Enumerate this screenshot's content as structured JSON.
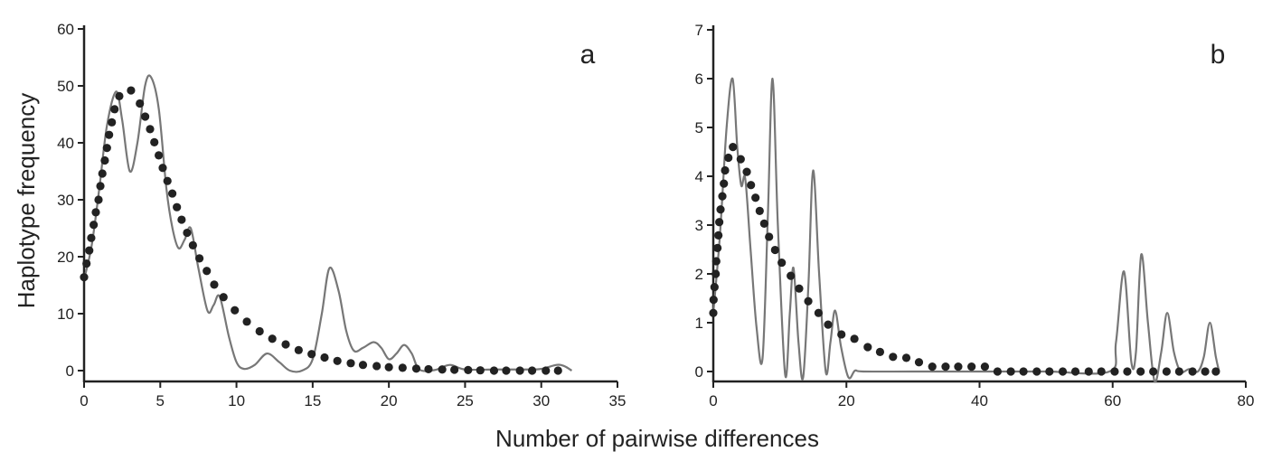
{
  "figure": {
    "xlabel": "Number of pairwise differences",
    "ylabel": "Haplotype frequency",
    "colors": {
      "observed_line": "#777777",
      "expected_dots": "#222222",
      "axis": "#222222"
    }
  },
  "chart_data": [
    {
      "type": "line",
      "panel_label": "a",
      "xlim": [
        0,
        35
      ],
      "ylim": [
        0,
        60
      ],
      "xticks": [
        "0",
        "5",
        "10",
        "15",
        "20",
        "25",
        "30",
        "35"
      ],
      "yticks": [
        "0",
        "10",
        "20",
        "30",
        "40",
        "50",
        "60"
      ],
      "grid": false,
      "series": [
        {
          "style": "solid-line",
          "x": [
            0,
            0.5,
            1,
            1.5,
            2.1,
            2.5,
            3.0,
            3.5,
            4.0,
            4.4,
            4.9,
            5.4,
            5.8,
            6.2,
            6.6,
            7.0,
            7.5,
            8.1,
            8.5,
            8.9,
            9.5,
            10.0,
            10.5,
            11.2,
            12.0,
            12.8,
            13.5,
            14.3,
            15.0,
            15.6,
            16.1,
            16.7,
            17.2,
            17.7,
            18.3,
            19.0,
            19.5,
            20.0,
            20.5,
            21.0,
            21.5,
            22.0,
            23.0,
            24.0,
            25.0,
            27.0,
            29.0,
            30.0,
            31.0,
            31.5,
            32.0
          ],
          "y": [
            16,
            22,
            32,
            43,
            49,
            44,
            35,
            40,
            50,
            51.5,
            46,
            32,
            25,
            21.5,
            23,
            25,
            18,
            10.5,
            11.5,
            13,
            6,
            1.5,
            0.3,
            1,
            3,
            1.5,
            0,
            0,
            2,
            10,
            18,
            14,
            7,
            3.5,
            4,
            5,
            4,
            2,
            3,
            4.5,
            3,
            0.2,
            0.1,
            1,
            0.2,
            0.2,
            0.2,
            0.3,
            1,
            0.8,
            0
          ]
        },
        {
          "style": "dots",
          "x": [
            0,
            0.16,
            0.34,
            0.47,
            0.63,
            0.77,
            0.95,
            1.07,
            1.2,
            1.36,
            1.5,
            1.64,
            1.82,
            2.0,
            2.31,
            3.08,
            3.66,
            4.01,
            4.33,
            4.61,
            4.9,
            5.16,
            5.47,
            5.79,
            6.09,
            6.4,
            6.76,
            7.14,
            7.57,
            8.05,
            8.54,
            9.15,
            9.89,
            10.68,
            11.52,
            12.35,
            13.23,
            14.08,
            14.93,
            15.78,
            16.62,
            17.5,
            18.3,
            19.2,
            20.0,
            20.9,
            21.8,
            22.6,
            23.5,
            24.3,
            25.2,
            26.0,
            26.9,
            27.7,
            28.6,
            29.4,
            30.3,
            31.1
          ],
          "y": [
            16.4,
            18.8,
            21.1,
            23.3,
            25.6,
            27.8,
            30.0,
            32.4,
            34.6,
            36.9,
            39.1,
            41.4,
            43.6,
            45.9,
            48.2,
            49.2,
            46.9,
            44.6,
            42.4,
            40.1,
            37.8,
            35.6,
            33.3,
            31.1,
            28.7,
            26.5,
            24.2,
            22.0,
            19.7,
            17.5,
            15.1,
            12.9,
            10.6,
            8.6,
            6.9,
            5.6,
            4.6,
            3.6,
            2.9,
            2.3,
            1.7,
            1.3,
            1.0,
            0.8,
            0.6,
            0.5,
            0.35,
            0.25,
            0.2,
            0.15,
            0.1,
            0.05,
            0,
            0,
            0,
            0,
            0,
            0
          ]
        }
      ]
    },
    {
      "type": "line",
      "panel_label": "b",
      "xlim": [
        0,
        80
      ],
      "ylim": [
        0,
        7
      ],
      "xticks": [
        "0",
        "20",
        "40",
        "60",
        "80"
      ],
      "yticks": [
        "0",
        "1",
        "2",
        "3",
        "4",
        "5",
        "6",
        "7"
      ],
      "grid": false,
      "series": [
        {
          "style": "solid-line",
          "x": [
            0,
            1.0,
            2.0,
            2.9,
            3.6,
            4.2,
            4.8,
            5.6,
            6.5,
            7.4,
            8.2,
            8.9,
            9.7,
            10.8,
            11.5,
            12.05,
            12.8,
            13.5,
            14.3,
            15.0,
            15.9,
            16.9,
            17.6,
            18.3,
            19.2,
            20.3,
            21.3,
            22.5,
            30,
            40,
            50,
            59.5,
            60.5,
            61.7,
            62.8,
            63.5,
            64.3,
            65.3,
            66.3,
            67.3,
            68.2,
            69.2,
            70.2,
            71.5,
            72.8,
            73.7,
            74.6,
            75.5,
            76.0
          ],
          "y": [
            1.2,
            2.8,
            5.0,
            6.0,
            4.6,
            3.81,
            3.95,
            2.5,
            0.9,
            0.27,
            3.2,
            6.0,
            3.0,
            -0.07,
            1.2,
            2.12,
            0.6,
            -0.12,
            1.8,
            4.12,
            2.0,
            -0.01,
            0.6,
            1.25,
            0.5,
            -0.12,
            0.02,
            0,
            0,
            0,
            0,
            0,
            0.6,
            2.05,
            0.2,
            0.4,
            2.4,
            1.0,
            -0.2,
            0.4,
            1.2,
            0.4,
            0,
            0.05,
            0,
            0.3,
            1.0,
            0.3,
            0
          ]
        },
        {
          "style": "dots",
          "x": [
            0,
            0.04,
            0.18,
            0.36,
            0.45,
            0.63,
            0.77,
            0.9,
            1.09,
            1.36,
            1.59,
            1.77,
            2.27,
            2.95,
            4.12,
            5.03,
            5.66,
            6.34,
            6.97,
            7.65,
            8.38,
            9.28,
            10.28,
            11.64,
            12.9,
            14.27,
            15.81,
            17.25,
            19.25,
            21.2,
            23.2,
            25.05,
            27.0,
            29.0,
            30.9,
            32.9,
            34.9,
            36.8,
            38.8,
            40.8,
            42.7,
            44.7,
            46.6,
            48.6,
            50.5,
            52.5,
            54.4,
            56.4,
            58.3,
            60.3,
            62.2,
            64.2,
            66.1,
            68.1,
            70.0,
            72.0,
            73.9,
            75.5
          ],
          "y": [
            1.2,
            1.47,
            1.73,
            2.0,
            2.26,
            2.53,
            2.79,
            3.06,
            3.32,
            3.59,
            3.85,
            4.12,
            4.38,
            4.6,
            4.35,
            4.09,
            3.82,
            3.56,
            3.29,
            3.03,
            2.76,
            2.49,
            2.23,
            1.96,
            1.7,
            1.44,
            1.2,
            0.96,
            0.76,
            0.67,
            0.5,
            0.4,
            0.3,
            0.28,
            0.19,
            0.1,
            0.1,
            0.1,
            0.1,
            0.1,
            0,
            0,
            0,
            0,
            0,
            0,
            0,
            0,
            0,
            0,
            0,
            0,
            0,
            0,
            0,
            0,
            0,
            0
          ]
        }
      ]
    }
  ]
}
